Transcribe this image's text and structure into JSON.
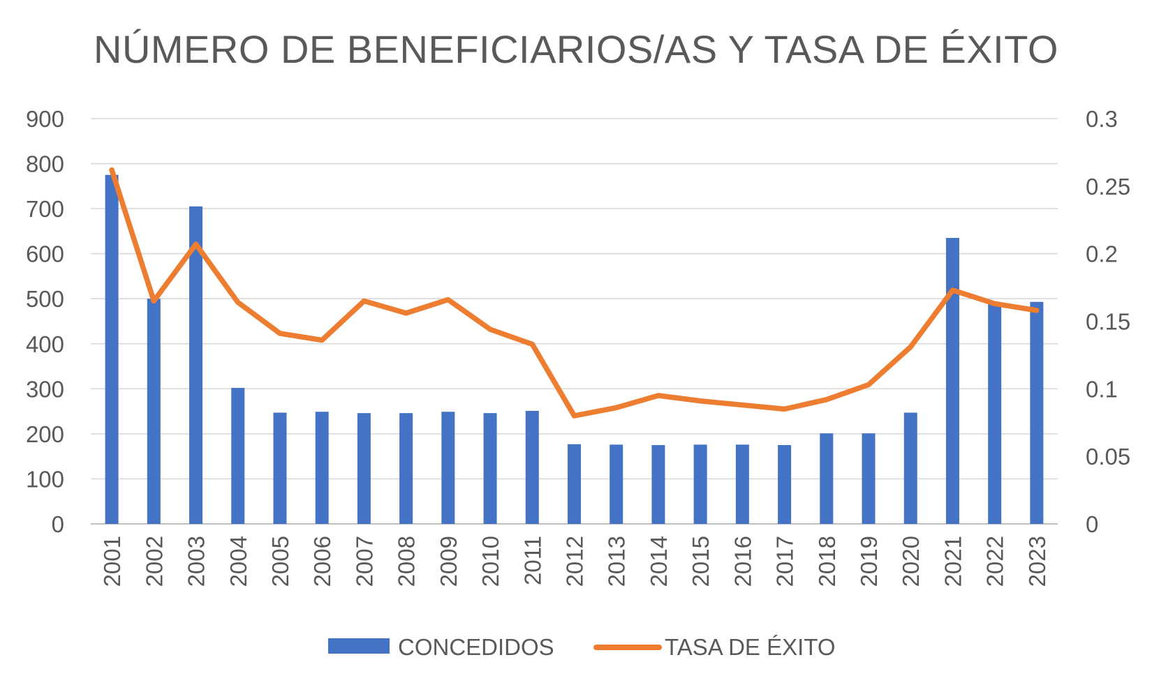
{
  "chart_data": {
    "type": "bar",
    "title": "NÚMERO DE BENEFICIARIOS/AS Y TASA DE ÉXITO",
    "categories": [
      "2001",
      "2002",
      "2003",
      "2004",
      "2005",
      "2006",
      "2007",
      "2008",
      "2009",
      "2010",
      "2011",
      "2012",
      "2013",
      "2014",
      "2015",
      "2016",
      "2017",
      "2018",
      "2019",
      "2020",
      "2021",
      "2022",
      "2023"
    ],
    "series": [
      {
        "name": "CONCEDIDOS",
        "type": "bar",
        "axis": "left",
        "color": "#4472C4",
        "values": [
          775,
          500,
          705,
          302,
          247,
          249,
          246,
          246,
          249,
          246,
          251,
          177,
          176,
          175,
          176,
          176,
          175,
          201,
          201,
          247,
          635,
          490,
          493
        ]
      },
      {
        "name": "TASA DE ÉXITO",
        "type": "line",
        "axis": "right",
        "color": "#ED7D31",
        "values": [
          0.262,
          0.165,
          0.207,
          0.164,
          0.141,
          0.136,
          0.165,
          0.156,
          0.166,
          0.144,
          0.133,
          0.08,
          0.086,
          0.095,
          0.091,
          0.088,
          0.085,
          0.092,
          0.103,
          0.131,
          0.173,
          0.163,
          0.158
        ]
      }
    ],
    "y_left": {
      "lim": [
        0,
        900
      ],
      "ticks": [
        "0",
        "100",
        "200",
        "300",
        "400",
        "500",
        "600",
        "700",
        "800",
        "900"
      ]
    },
    "y_right": {
      "lim": [
        0,
        0.3
      ],
      "ticks": [
        "0",
        "0.05",
        "0.1",
        "0.15",
        "0.2",
        "0.25",
        "0.3"
      ]
    },
    "grid": true,
    "legend_position": "bottom"
  }
}
